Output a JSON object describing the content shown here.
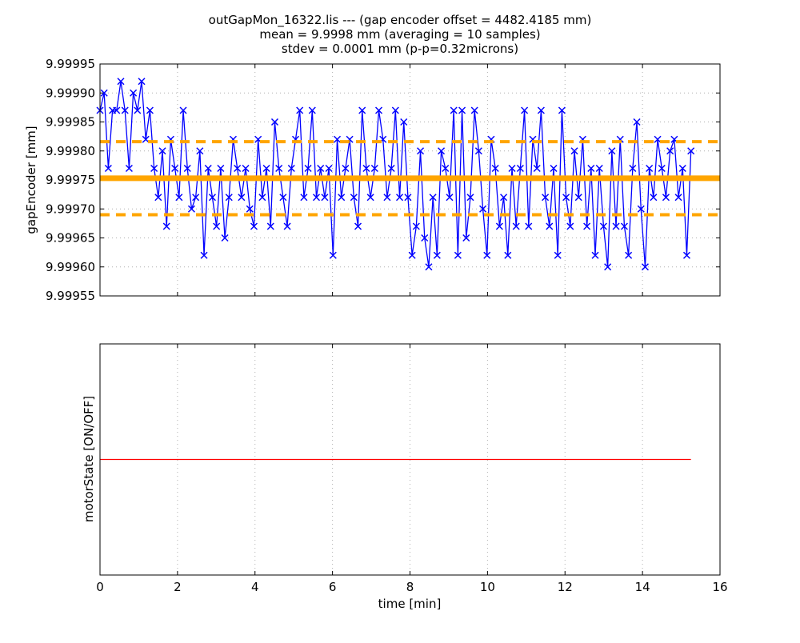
{
  "chart_data": [
    {
      "type": "line",
      "title_lines": [
        "outGapMon_16322.lis --- (gap encoder offset = 4482.4185 mm)",
        "mean = 9.9998 mm (averaging = 10 samples)",
        "stdev = 0.0001 mm (p-p=0.32microns)"
      ],
      "xlabel": "",
      "ylabel": "gapEncoder [mm]",
      "xlim": [
        0,
        16
      ],
      "ylim": [
        9.99955,
        9.99995
      ],
      "x_ticks": [
        0,
        2,
        4,
        6,
        8,
        10,
        12,
        14,
        16
      ],
      "y_ticks": [
        "9.99955",
        "9.99960",
        "9.99965",
        "9.99970",
        "9.99975",
        "9.99980",
        "9.99985",
        "9.99990",
        "9.99995"
      ],
      "grid": true,
      "series": {
        "name": "gapEncoder",
        "color": "#0000ff",
        "marker": "x",
        "x_start": 0,
        "x_end": 15.25,
        "values": [
          9.99987,
          9.9999,
          9.99977,
          9.99987,
          9.99987,
          9.99992,
          9.99987,
          9.99977,
          9.9999,
          9.99987,
          9.99992,
          9.99982,
          9.99987,
          9.99977,
          9.99972,
          9.9998,
          9.99967,
          9.99982,
          9.99977,
          9.99972,
          9.99987,
          9.99977,
          9.9997,
          9.99972,
          9.9998,
          9.99962,
          9.99977,
          9.99972,
          9.99967,
          9.99977,
          9.99965,
          9.99972,
          9.99982,
          9.99977,
          9.99972,
          9.99977,
          9.9997,
          9.99967,
          9.99982,
          9.99972,
          9.99977,
          9.99967,
          9.99985,
          9.99977,
          9.99972,
          9.99967,
          9.99977,
          9.99982,
          9.99987,
          9.99972,
          9.99977,
          9.99987,
          9.99972,
          9.99977,
          9.99972,
          9.99977,
          9.99962,
          9.99982,
          9.99972,
          9.99977,
          9.99982,
          9.99972,
          9.99967,
          9.99987,
          9.99977,
          9.99972,
          9.99977,
          9.99987,
          9.99982,
          9.99972,
          9.99977,
          9.99987,
          9.99972,
          9.99985,
          9.99972,
          9.99962,
          9.99967,
          9.9998,
          9.99965,
          9.9996,
          9.99972,
          9.99962,
          9.9998,
          9.99977,
          9.99972,
          9.99987,
          9.99962,
          9.99987,
          9.99965,
          9.99972,
          9.99987,
          9.9998,
          9.9997,
          9.99962,
          9.99982,
          9.99977,
          9.99967,
          9.99972,
          9.99962,
          9.99977,
          9.99967,
          9.99977,
          9.99987,
          9.99967,
          9.99982,
          9.99977,
          9.99987,
          9.99972,
          9.99967,
          9.99977,
          9.99962,
          9.99987,
          9.99972,
          9.99967,
          9.9998,
          9.99972,
          9.99982,
          9.99967,
          9.99977,
          9.99962,
          9.99977,
          9.99967,
          9.9996,
          9.9998,
          9.99967,
          9.99982,
          9.99967,
          9.99962,
          9.99977,
          9.99985,
          9.9997,
          9.9996,
          9.99977,
          9.99972,
          9.99982,
          9.99977,
          9.99972,
          9.9998,
          9.99982,
          9.99972,
          9.99977,
          9.99962,
          9.9998
        ]
      },
      "mean_line": {
        "value": 9.999753,
        "color": "#ffa500"
      },
      "stdev_band": {
        "upper": 9.999816,
        "lower": 9.99969,
        "color": "#ffa500",
        "style": "dashed"
      }
    },
    {
      "type": "line",
      "xlabel": "time [min]",
      "ylabel": "motorState [ON/OFF]",
      "xlim": [
        0,
        16
      ],
      "ylim": [
        -1,
        1
      ],
      "x_ticks": [
        "0",
        "2",
        "4",
        "6",
        "8",
        "10",
        "12",
        "14",
        "16"
      ],
      "grid": true,
      "series": {
        "name": "motorState",
        "color": "#ff0000",
        "x": [
          0,
          15.25
        ],
        "y": [
          0,
          0
        ]
      }
    }
  ]
}
